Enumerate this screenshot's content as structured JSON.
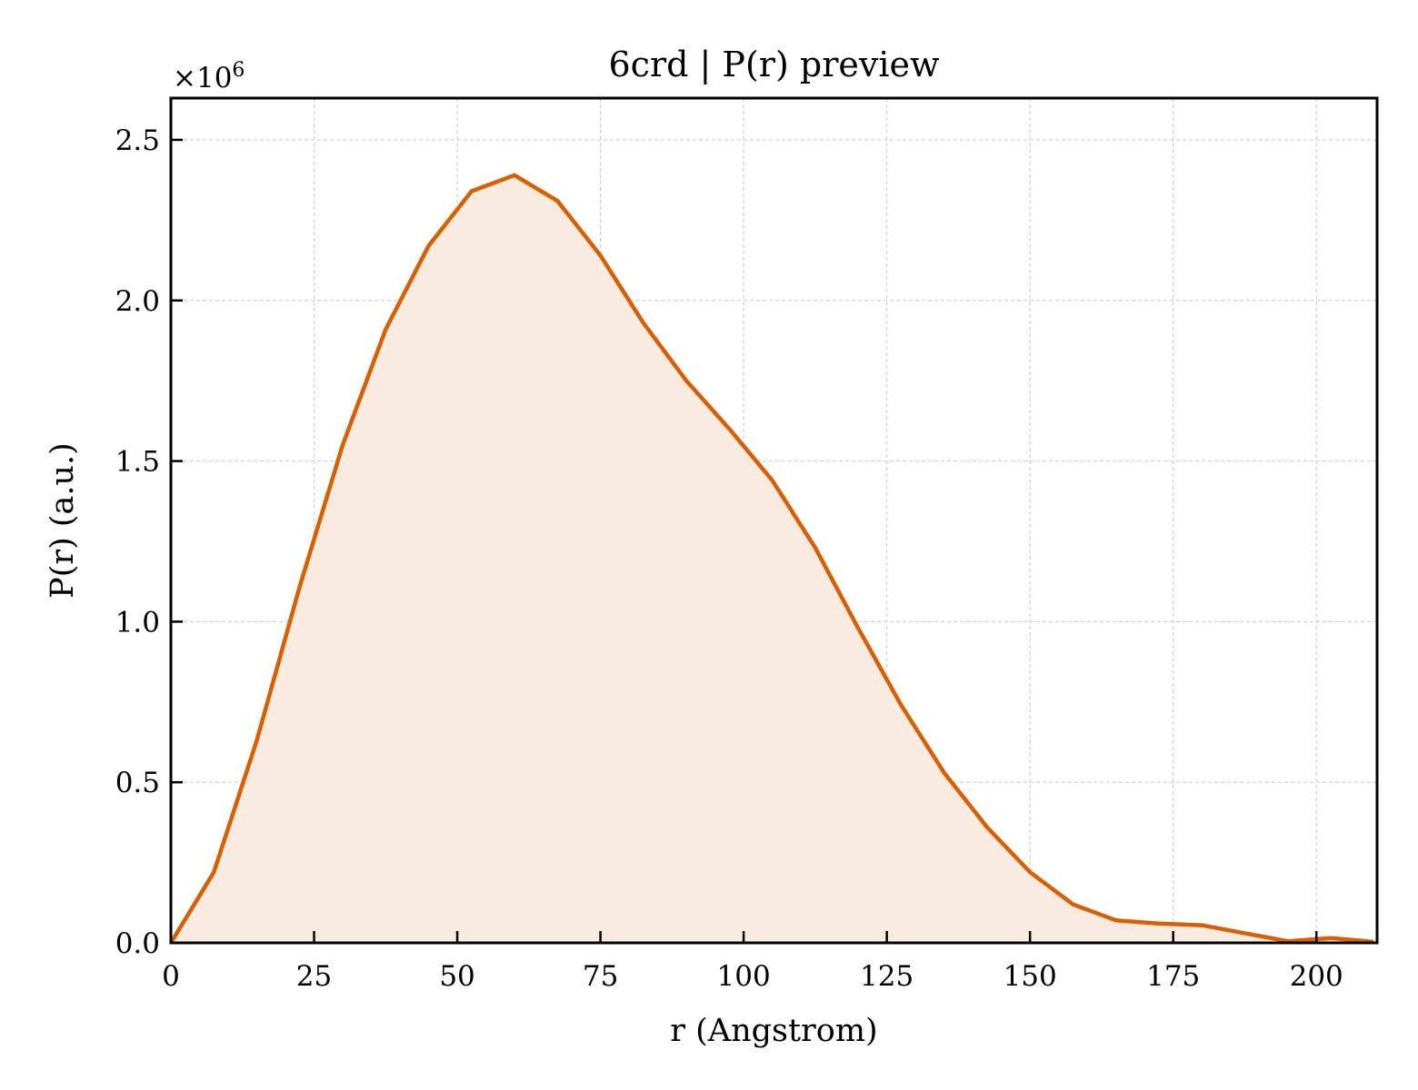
{
  "chart_data": {
    "type": "area",
    "title": "6crd | P(r) preview",
    "xlabel": "r (Angstrom)",
    "ylabel": "P(r) (a.u.)",
    "y_multiplier": "×10",
    "y_multiplier_exp": "6",
    "xlim": [
      0,
      210.6
    ],
    "ylim": [
      0,
      2.63
    ],
    "xticks": [
      0,
      25,
      50,
      75,
      100,
      125,
      150,
      175,
      200
    ],
    "xtick_labels": [
      "0",
      "25",
      "50",
      "75",
      "100",
      "125",
      "150",
      "175",
      "200"
    ],
    "yticks": [
      0.0,
      0.5,
      1.0,
      1.5,
      2.0,
      2.5
    ],
    "ytick_labels": [
      "0.0",
      "0.5",
      "1.0",
      "1.5",
      "2.0",
      "2.5"
    ],
    "grid": true,
    "colors": {
      "line": "#d95f02",
      "fill": "#f9ebe0"
    },
    "x": [
      0,
      7.5,
      15.0,
      22.5,
      30.0,
      37.5,
      45.0,
      52.5,
      60.0,
      67.5,
      75.0,
      82.5,
      90.0,
      97.5,
      105.0,
      112.5,
      120.0,
      127.5,
      135.0,
      142.5,
      150.0,
      157.5,
      165.0,
      172.5,
      180.0,
      187.5,
      195.0,
      202.5,
      210.0
    ],
    "y": [
      0.0,
      0.22,
      0.63,
      1.11,
      1.55,
      1.91,
      2.17,
      2.34,
      2.39,
      2.31,
      2.14,
      1.93,
      1.75,
      1.6,
      1.44,
      1.23,
      0.98,
      0.74,
      0.53,
      0.36,
      0.22,
      0.12,
      0.07,
      0.06,
      0.055,
      0.03,
      0.005,
      0.015,
      0.003
    ]
  }
}
